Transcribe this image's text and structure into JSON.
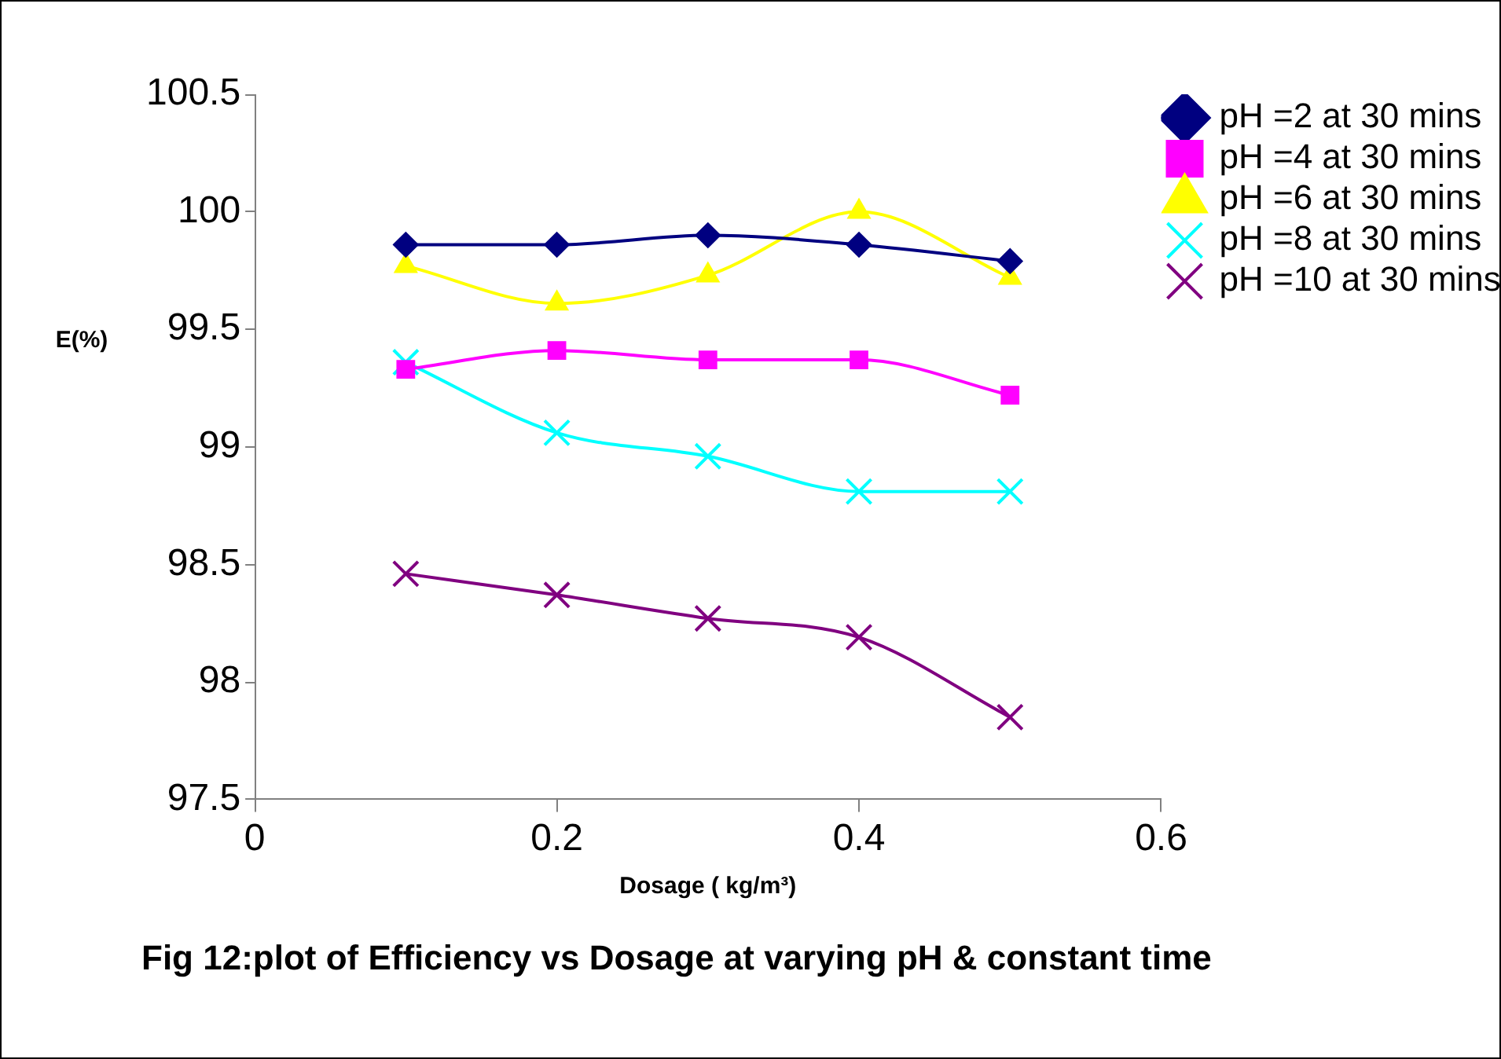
{
  "chart_data": {
    "type": "line",
    "title": "Fig 12:plot of Efficiency vs Dosage at varying pH & constant time",
    "xlabel": "Dosage ( kg/m³)",
    "ylabel": "E(%)",
    "x": [
      0.1,
      0.2,
      0.3,
      0.4,
      0.5
    ],
    "xlim": [
      0,
      0.6
    ],
    "xticks": [
      0,
      0.2,
      0.4,
      0.6
    ],
    "ylim": [
      97.5,
      100.5
    ],
    "yticks": [
      97.5,
      98,
      98.5,
      99,
      99.5,
      100,
      100.5
    ],
    "grid": false,
    "legend": "right",
    "line_style": "solid",
    "series": [
      {
        "name": "pH =2 at 30 mins",
        "color": "#000080",
        "marker": "diamond",
        "values": [
          99.86,
          99.86,
          99.9,
          99.86,
          99.79
        ]
      },
      {
        "name": "pH =4 at 30 mins",
        "color": "#ff00ff",
        "marker": "square",
        "values": [
          99.33,
          99.41,
          99.37,
          99.37,
          99.22
        ]
      },
      {
        "name": "pH =6 at 30 mins",
        "color": "#ffff00",
        "marker": "triangle",
        "values": [
          99.77,
          99.61,
          99.73,
          100.0,
          99.72
        ]
      },
      {
        "name": "pH =8 at 30 mins",
        "color": "#00ffff",
        "marker": "cross",
        "values": [
          99.36,
          99.06,
          98.96,
          98.81,
          98.81
        ]
      },
      {
        "name": "pH =10 at 30 mins",
        "color": "#800080",
        "marker": "cross",
        "values": [
          98.46,
          98.37,
          98.27,
          98.19,
          97.85
        ]
      }
    ]
  }
}
